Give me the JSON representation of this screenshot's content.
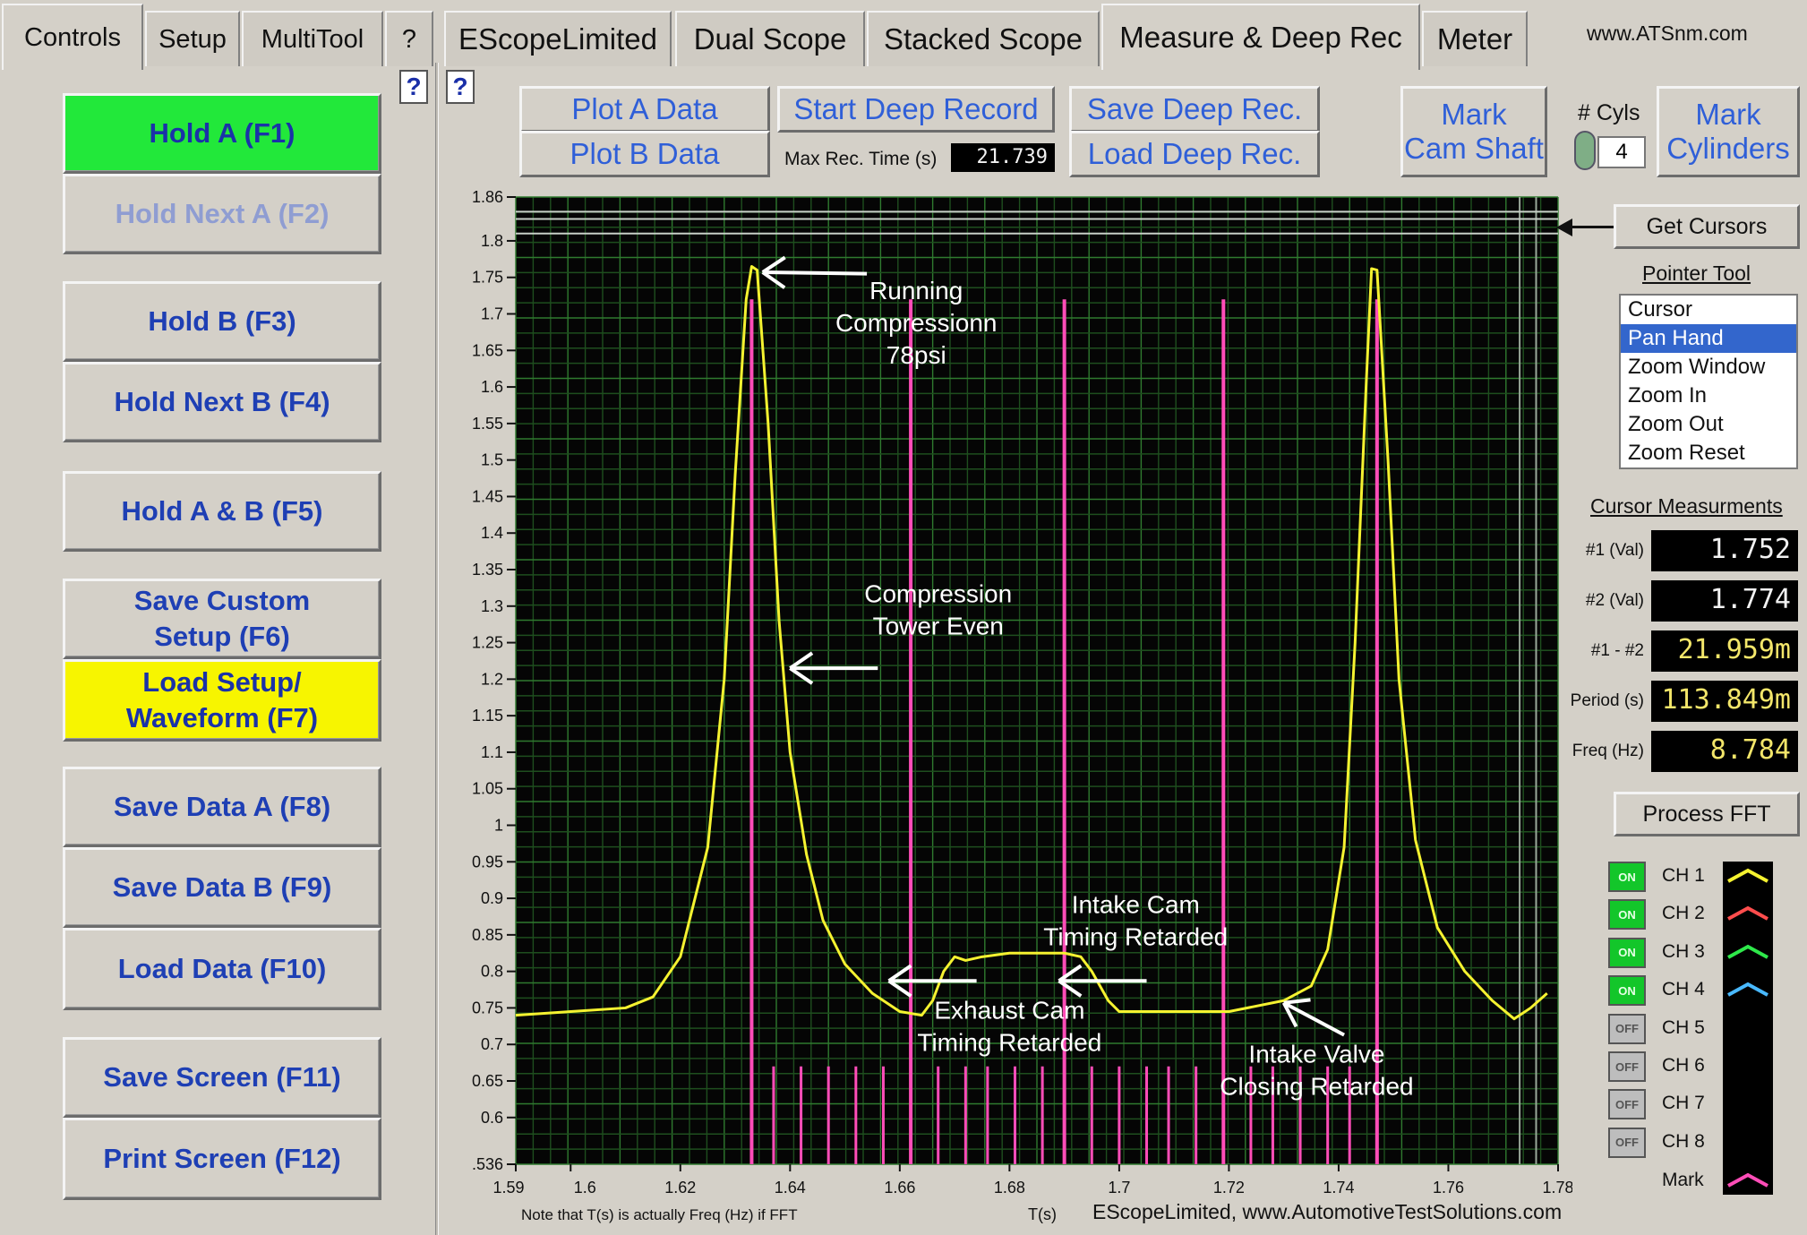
{
  "tabs_left": [
    {
      "label": "Controls"
    },
    {
      "label": "Setup"
    },
    {
      "label": "MultiTool"
    },
    {
      "label": "?"
    }
  ],
  "tabs_right": [
    {
      "label": "EScopeLimited"
    },
    {
      "label": "Dual Scope"
    },
    {
      "label": "Stacked Scope"
    },
    {
      "label": "Measure & Deep Rec"
    },
    {
      "label": "Meter"
    }
  ],
  "website": "www.ATSnm.com",
  "help_label": "?",
  "left_buttons": {
    "hold_a": "Hold A (F1)",
    "hold_next_a": "Hold Next A (F2)",
    "hold_b": "Hold B (F3)",
    "hold_next_b": "Hold Next B (F4)",
    "hold_ab": "Hold A & B (F5)",
    "save_custom_1": "Save Custom",
    "save_custom_2": "Setup (F6)",
    "load_setup_1": "Load Setup/",
    "load_setup_2": "Waveform (F7)",
    "save_data_a": "Save Data A (F8)",
    "save_data_b": "Save Data B (F9)",
    "load_data": "Load Data (F10)",
    "save_screen": "Save Screen (F11)",
    "print_screen": "Print Screen (F12)"
  },
  "toolbar": {
    "plot_a": "Plot A Data",
    "plot_b": "Plot B Data",
    "start_deep": "Start Deep Record",
    "max_rec_label": "Max Rec. Time (s)",
    "max_rec_value": "21.739",
    "save_deep": "Save Deep Rec.",
    "load_deep": "Load Deep Rec.",
    "mark_cam_1": "Mark",
    "mark_cam_2": "Cam Shaft",
    "cyls_label": "# Cyls",
    "cyls_value": "4",
    "mark_cyl_1": "Mark",
    "mark_cyl_2": "Cylinders"
  },
  "right_panel": {
    "get_cursors": "Get Cursors",
    "pointer_tool": "Pointer Tool",
    "pointer_items": [
      "Cursor",
      "Pan Hand",
      "Zoom Window",
      "Zoom In",
      "Zoom Out",
      "Zoom Reset"
    ],
    "pointer_selected": "Pan Hand",
    "cursor_meas": "Cursor Measurments",
    "measurements": [
      {
        "label": "#1 (Val)",
        "value": "1.752"
      },
      {
        "label": "#2 (Val)",
        "value": "1.774"
      },
      {
        "label": "#1 - #2",
        "value": "21.959m"
      },
      {
        "label": "Period (s)",
        "value": "113.849m"
      },
      {
        "label": "Freq (Hz)",
        "value": "8.784"
      }
    ],
    "process_fft": "Process FFT",
    "channels": [
      {
        "state": "ON",
        "name": "CH 1",
        "color": "#f5f230"
      },
      {
        "state": "ON",
        "name": "CH 2",
        "color": "#ff4d4d"
      },
      {
        "state": "ON",
        "name": "CH 3",
        "color": "#2ee84a"
      },
      {
        "state": "ON",
        "name": "CH 4",
        "color": "#49b9ff"
      },
      {
        "state": "OFF",
        "name": "CH 5",
        "color": ""
      },
      {
        "state": "OFF",
        "name": "CH 6",
        "color": ""
      },
      {
        "state": "OFF",
        "name": "CH 7",
        "color": ""
      },
      {
        "state": "OFF",
        "name": "CH 8",
        "color": ""
      }
    ],
    "mark_label": "Mark",
    "mark_color": "#ff4db8"
  },
  "chart_data": {
    "type": "line",
    "xlim": [
      1.59,
      1.78
    ],
    "ylim": [
      0.536,
      1.86
    ],
    "xticks": [
      "1.59",
      "1.6",
      "1.62",
      "1.64",
      "1.66",
      "1.68",
      "1.7",
      "1.72",
      "1.74",
      "1.76",
      "1.78"
    ],
    "xtick_values": [
      1.59,
      1.6,
      1.62,
      1.64,
      1.66,
      1.68,
      1.7,
      1.72,
      1.74,
      1.76,
      1.78
    ],
    "yticks": [
      "1.86",
      "1.8",
      "1.75",
      "1.7",
      "1.65",
      "1.6",
      "1.55",
      "1.5",
      "1.45",
      "1.4",
      "1.35",
      "1.3",
      "1.25",
      "1.2",
      "1.15",
      "1.1",
      "1.05",
      "1",
      "0.95",
      "0.9",
      "0.85",
      "0.8",
      "0.75",
      "0.7",
      "0.65",
      "0.6",
      ".536"
    ],
    "ytick_values": [
      1.86,
      1.8,
      1.75,
      1.7,
      1.65,
      1.6,
      1.55,
      1.5,
      1.45,
      1.4,
      1.35,
      1.3,
      1.25,
      1.2,
      1.15,
      1.1,
      1.05,
      1.0,
      0.95,
      0.9,
      0.85,
      0.8,
      0.75,
      0.7,
      0.65,
      0.6,
      0.536
    ],
    "xlabel": "T(s)",
    "note": "Note that T(s) is actually Freq (Hz) if FFT",
    "credit": "EScopeLimited, www.AutomotiveTestSolutions.com",
    "grid": true,
    "series": [
      {
        "color": "#f5f230",
        "x": [
          1.59,
          1.6,
          1.61,
          1.615,
          1.62,
          1.625,
          1.628,
          1.63,
          1.632,
          1.633,
          1.634,
          1.636,
          1.638,
          1.64,
          1.643,
          1.646,
          1.65,
          1.655,
          1.66,
          1.664,
          1.666,
          1.668,
          1.67,
          1.672,
          1.675,
          1.68,
          1.685,
          1.69,
          1.693,
          1.695,
          1.698,
          1.7,
          1.71,
          1.72,
          1.73,
          1.735,
          1.738,
          1.741,
          1.743,
          1.745,
          1.746,
          1.747,
          1.749,
          1.751,
          1.754,
          1.758,
          1.763,
          1.768,
          1.772,
          1.775,
          1.778
        ],
        "y": [
          0.74,
          0.745,
          0.75,
          0.765,
          0.82,
          0.97,
          1.2,
          1.48,
          1.72,
          1.765,
          1.76,
          1.55,
          1.28,
          1.1,
          0.96,
          0.87,
          0.81,
          0.77,
          0.745,
          0.74,
          0.76,
          0.8,
          0.82,
          0.815,
          0.82,
          0.825,
          0.825,
          0.825,
          0.82,
          0.8,
          0.76,
          0.745,
          0.745,
          0.745,
          0.76,
          0.78,
          0.83,
          0.97,
          1.25,
          1.6,
          1.762,
          1.76,
          1.5,
          1.2,
          0.98,
          0.86,
          0.8,
          0.76,
          0.735,
          0.75,
          0.77
        ]
      }
    ],
    "mark_lines": {
      "color": "#ff4db8",
      "tall": [
        1.633,
        1.662,
        1.69,
        1.719,
        1.747
      ],
      "short": [
        1.637,
        1.642,
        1.647,
        1.652,
        1.657,
        1.667,
        1.672,
        1.676,
        1.681,
        1.686,
        1.695,
        1.7,
        1.705,
        1.709,
        1.714,
        1.724,
        1.728,
        1.733,
        1.738,
        1.742
      ]
    },
    "cursor_lines_x": [
      1.773,
      1.776
    ],
    "cursor_lines_y": [
      1.84,
      1.83,
      1.81
    ],
    "annotations": [
      {
        "lines": [
          "Running",
          "Compressionn",
          "78psi"
        ],
        "x": 1.663,
        "y": 1.72
      },
      {
        "lines": [
          "Compression",
          "Tower Even"
        ],
        "x": 1.667,
        "y": 1.305
      },
      {
        "lines": [
          "Intake Cam",
          "Timing Retarded"
        ],
        "x": 1.703,
        "y": 0.88
      },
      {
        "lines": [
          "Exhaust Cam",
          "Timing Retarded"
        ],
        "x": 1.68,
        "y": 0.735
      },
      {
        "lines": [
          "Intake Valve",
          "Closing Retarded"
        ],
        "x": 1.736,
        "y": 0.675
      }
    ],
    "arrows": [
      {
        "x1": 1.654,
        "y1": 1.755,
        "x2": 1.635,
        "y2": 1.757
      },
      {
        "x1": 1.656,
        "y1": 1.215,
        "x2": 1.64,
        "y2": 1.215
      },
      {
        "x1": 1.674,
        "y1": 0.787,
        "x2": 1.658,
        "y2": 0.787
      },
      {
        "x1": 1.705,
        "y1": 0.787,
        "x2": 1.689,
        "y2": 0.787
      },
      {
        "x1": 1.741,
        "y1": 0.713,
        "x2": 1.73,
        "y2": 0.757
      }
    ]
  }
}
